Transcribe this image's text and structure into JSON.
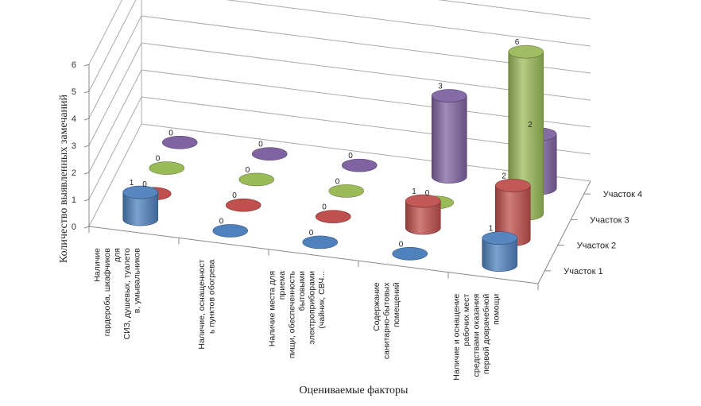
{
  "chart_data": {
    "type": "bar",
    "style": "3d-cylinder",
    "title": "",
    "xlabel": "Оцениваемые факторы",
    "ylabel": "Количество выявленных замечаний",
    "ylim": [
      0,
      6
    ],
    "yticks": [
      "0",
      "1",
      "2",
      "3",
      "4",
      "5",
      "6"
    ],
    "grid": true,
    "legend_position": "right (depth axis)",
    "categories": [
      [
        "Наличие",
        "гардероба, шкафчиков",
        "для",
        "СИЗ, душевых, туалето",
        "в, умывальников"
      ],
      [
        "Наличие, оснащенност",
        "ь пунктов обогрева"
      ],
      [
        "Наличие  места для",
        "приема",
        "пищи, обеспеченность",
        "бытовыми",
        "электроприборами",
        "(чайник, СВЧ..."
      ],
      [
        "Содержание",
        "санитарно-бытовых",
        "помещений"
      ],
      [
        "Наличие и оснащение",
        "рабочих мест",
        "средствами оказания",
        "первой доврачебной",
        "помощи"
      ]
    ],
    "series": [
      {
        "name": "Участок 1",
        "color": "#4f81bd",
        "values": [
          1,
          0,
          0,
          0,
          1
        ]
      },
      {
        "name": "Участок 2",
        "color": "#c0504d",
        "values": [
          0,
          0,
          0,
          1,
          2
        ]
      },
      {
        "name": "Участок 3",
        "color": "#9bbb59",
        "values": [
          0,
          0,
          0,
          0,
          6
        ]
      },
      {
        "name": "Участок 4",
        "color": "#8064a2",
        "values": [
          0,
          0,
          0,
          3,
          2
        ]
      }
    ]
  }
}
